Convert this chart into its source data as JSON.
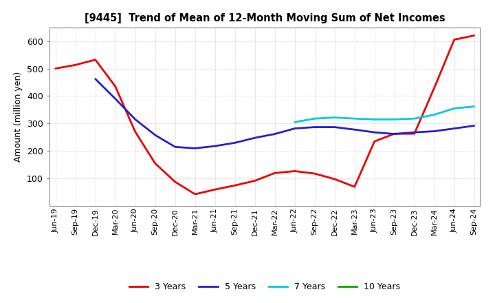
{
  "title": "[9445]  Trend of Mean of 12-Month Moving Sum of Net Incomes",
  "ylabel": "Amount (million yen)",
  "x_labels": [
    "Jun-19",
    "Sep-19",
    "Dec-19",
    "Mar-20",
    "Jun-20",
    "Sep-20",
    "Dec-20",
    "Mar-21",
    "Jun-21",
    "Sep-21",
    "Dec-21",
    "Mar-22",
    "Jun-22",
    "Sep-22",
    "Dec-22",
    "Mar-23",
    "Jun-23",
    "Sep-23",
    "Dec-23",
    "Mar-24",
    "Jun-24",
    "Sep-24"
  ],
  "ylim": [
    0,
    650
  ],
  "yticks": [
    100,
    200,
    300,
    400,
    500,
    600
  ],
  "series": {
    "3 Years": {
      "color": "#ee0000",
      "data_y": [
        500,
        513,
        532,
        435,
        270,
        155,
        88,
        43,
        60,
        75,
        92,
        120,
        127,
        118,
        98,
        70,
        235,
        263,
        263,
        430,
        605,
        620
      ]
    },
    "5 Years": {
      "color": "#2222cc",
      "data_y": [
        null,
        null,
        462,
        390,
        315,
        258,
        215,
        210,
        218,
        230,
        248,
        262,
        282,
        287,
        287,
        278,
        268,
        262,
        268,
        272,
        282,
        292
      ]
    },
    "7 Years": {
      "color": "#00ccdd",
      "data_y": [
        null,
        null,
        null,
        null,
        null,
        null,
        null,
        null,
        null,
        null,
        null,
        null,
        305,
        318,
        322,
        318,
        315,
        315,
        318,
        332,
        355,
        362
      ]
    },
    "10 Years": {
      "color": "#00aa00",
      "data_y": [
        null,
        null,
        null,
        null,
        null,
        null,
        null,
        null,
        null,
        null,
        null,
        null,
        null,
        null,
        null,
        null,
        null,
        null,
        null,
        null,
        null,
        null
      ]
    }
  },
  "legend_labels": [
    "3 Years",
    "5 Years",
    "7 Years",
    "10 Years"
  ],
  "legend_colors": [
    "#ee0000",
    "#2222cc",
    "#00ccdd",
    "#00aa00"
  ],
  "background_color": "#ffffff",
  "grid_color": "#999999"
}
